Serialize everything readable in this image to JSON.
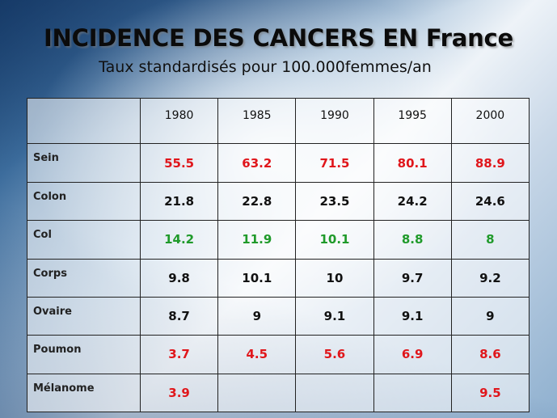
{
  "slide": {
    "title": "INCIDENCE DES CANCERS EN France",
    "subtitle": "Taux standardisés pour 100.000femmes/an"
  },
  "table": {
    "years": [
      "1980",
      "1985",
      "1990",
      "1995",
      "2000"
    ],
    "rows": [
      {
        "label": "Sein",
        "color": "#e0161b",
        "values": [
          "55.5",
          "63.2",
          "71.5",
          "80.1",
          "88.9"
        ]
      },
      {
        "label": "Colon",
        "color": "#111111",
        "values": [
          "21.8",
          "22.8",
          "23.5",
          "24.2",
          "24.6"
        ]
      },
      {
        "label": "Col",
        "color": "#1f9a2a",
        "values": [
          "14.2",
          "11.9",
          "10.1",
          "8.8",
          "8"
        ]
      },
      {
        "label": "Corps",
        "color": "#111111",
        "values": [
          "9.8",
          "10.1",
          "10",
          "9.7",
          "9.2"
        ]
      },
      {
        "label": "Ovaire",
        "color": "#111111",
        "values": [
          "8.7",
          "9",
          "9.1",
          "9.1",
          "9"
        ]
      },
      {
        "label": "Poumon",
        "color": "#e0161b",
        "values": [
          "3.7",
          "4.5",
          "5.6",
          "6.9",
          "8.6"
        ]
      },
      {
        "label": "Mélanome",
        "color": "#e0161b",
        "values": [
          "3.9",
          "",
          "",
          "",
          "9.5"
        ]
      }
    ]
  }
}
